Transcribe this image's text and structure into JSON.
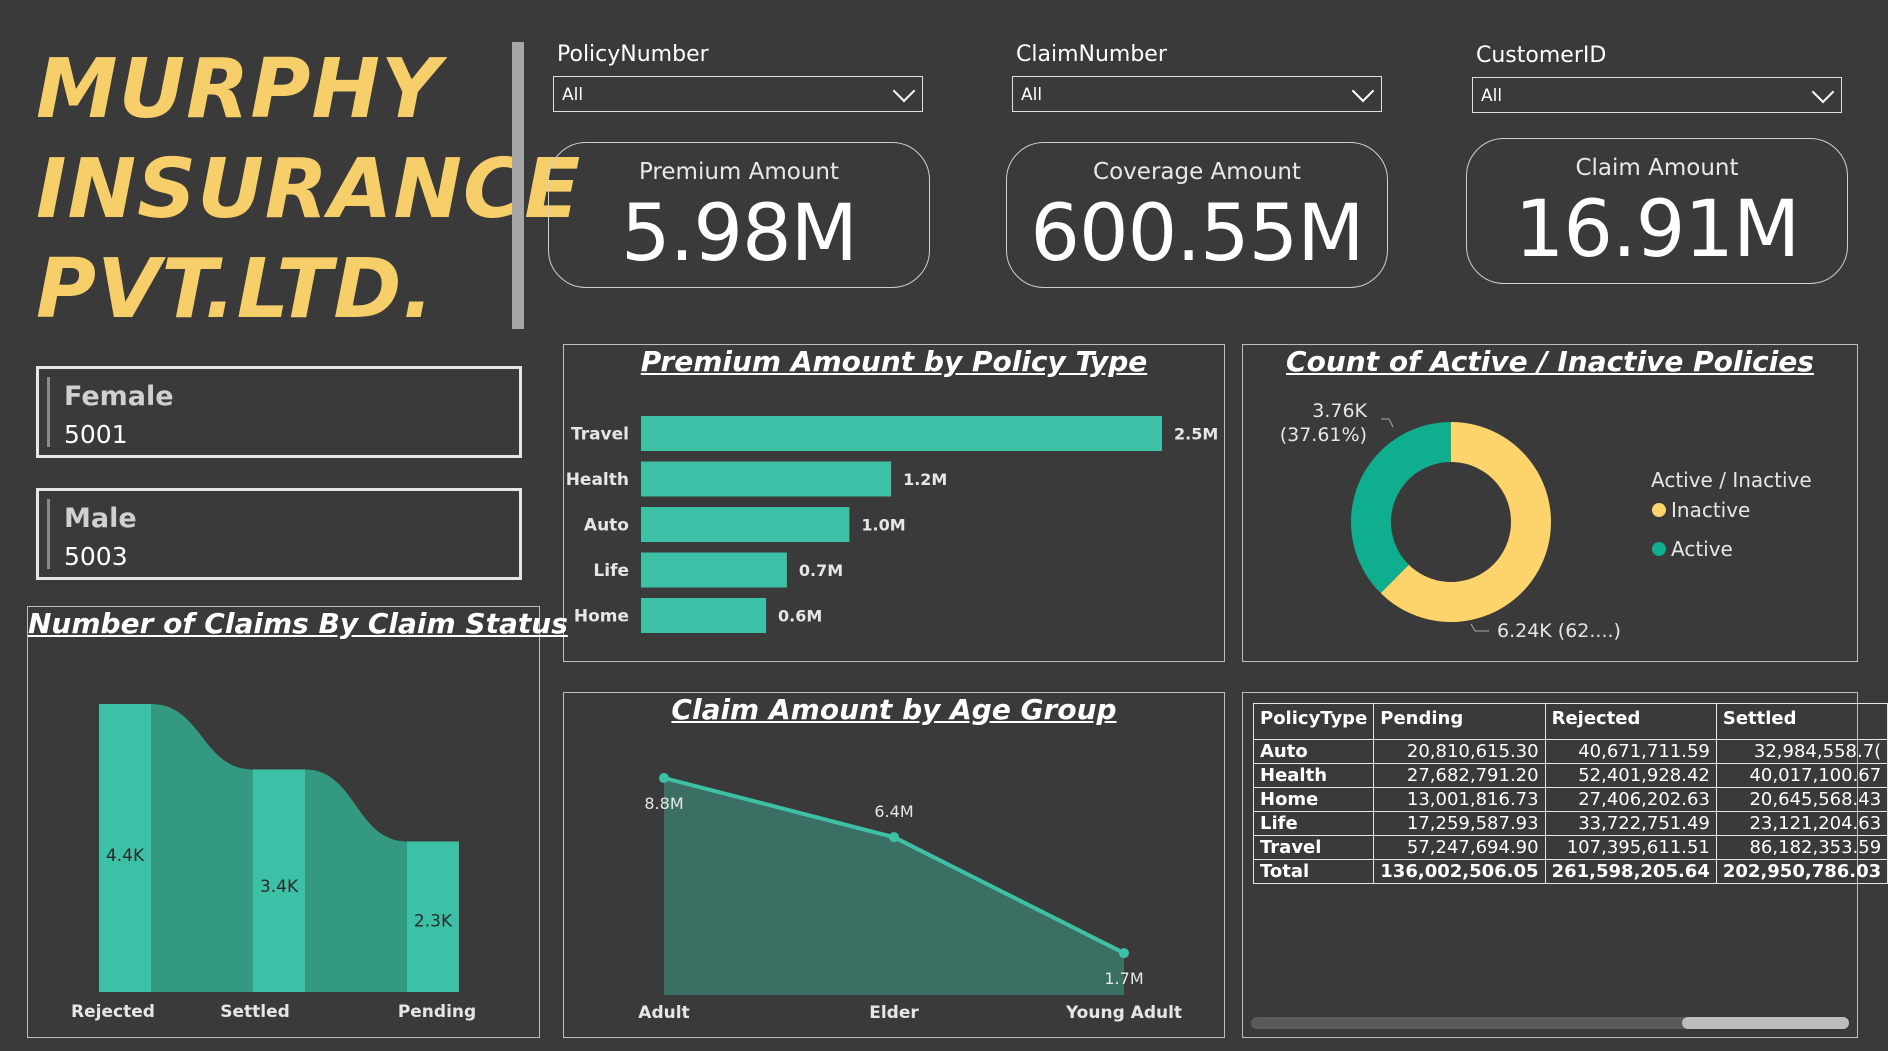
{
  "brand": {
    "line1": "MURPHY",
    "line2": "INSURANCE",
    "line3": "PVT.LTD.",
    "color": "#f6ce6a"
  },
  "gender": [
    {
      "label": "Female",
      "value": "5001"
    },
    {
      "label": "Male",
      "value": "5003"
    }
  ],
  "slicers": [
    {
      "label": "PolicyNumber",
      "value": "All"
    },
    {
      "label": "ClaimNumber",
      "value": "All"
    },
    {
      "label": "CustomerID",
      "value": "All"
    }
  ],
  "kpis": [
    {
      "label": "Premium Amount",
      "value": "5.98M"
    },
    {
      "label": "Coverage Amount",
      "value": "600.55M"
    },
    {
      "label": "Claim Amount",
      "value": "16.91M"
    }
  ],
  "colors": {
    "teal": "#3cc1a6",
    "teal_dark": "#0fae8e",
    "yellow": "#fdd36c",
    "area": "#3b6f64",
    "bg": "#3a3a3a"
  },
  "chart_data": [
    {
      "id": "premium_by_policy_type",
      "type": "bar",
      "title": "Premium Amount by Policy Type",
      "categories": [
        "Travel",
        "Health",
        "Auto",
        "Life",
        "Home"
      ],
      "values": [
        2.5,
        1.2,
        1.0,
        0.7,
        0.6
      ],
      "labels": [
        "2.5M",
        "1.2M",
        "1.0M",
        "0.7M",
        "0.6M"
      ],
      "xlim": [
        0,
        2.5
      ]
    },
    {
      "id": "active_inactive",
      "type": "pie",
      "title": "Count of Active / Inactive Policies",
      "legend_title": "Active / Inactive",
      "legend_position": "right",
      "slices": [
        {
          "name": "Inactive",
          "value": 6240,
          "label": "6.24K (62....)"
        },
        {
          "name": "Active",
          "value": 3760,
          "label_line1": "3.76K",
          "label_line2": "(37.61%)"
        }
      ]
    },
    {
      "id": "claims_by_status",
      "type": "bar",
      "title": "Number of Claims By Claim Status",
      "categories": [
        "Rejected",
        "Settled",
        "Pending"
      ],
      "values": [
        4.4,
        3.4,
        2.3
      ],
      "labels": [
        "4.4K",
        "3.4K",
        "2.3K"
      ],
      "ylim": [
        0,
        4.4
      ]
    },
    {
      "id": "claim_by_age_group",
      "type": "area",
      "title": "Claim Amount by Age Group",
      "categories": [
        "Adult",
        "Elder",
        "Young Adult"
      ],
      "values": [
        8.8,
        6.4,
        1.7
      ],
      "labels": [
        "8.8M",
        "6.4M",
        "1.7M"
      ],
      "ylim": [
        0,
        8.8
      ]
    }
  ],
  "table": {
    "columns": [
      "PolicyType",
      "Pending",
      "Rejected",
      "Settled"
    ],
    "rows": [
      [
        "Auto",
        "20,810,615.30",
        "40,671,711.59",
        "32,984,558.7("
      ],
      [
        "Health",
        "27,682,791.20",
        "52,401,928.42",
        "40,017,100.67"
      ],
      [
        "Home",
        "13,001,816.73",
        "27,406,202.63",
        "20,645,568.43"
      ],
      [
        "Life",
        "17,259,587.93",
        "33,722,751.49",
        "23,121,204.63"
      ],
      [
        "Travel",
        "57,247,694.90",
        "107,395,611.51",
        "86,182,353.59"
      ],
      [
        "Total",
        "136,002,506.05",
        "261,598,205.64",
        "202,950,786.03"
      ]
    ]
  }
}
